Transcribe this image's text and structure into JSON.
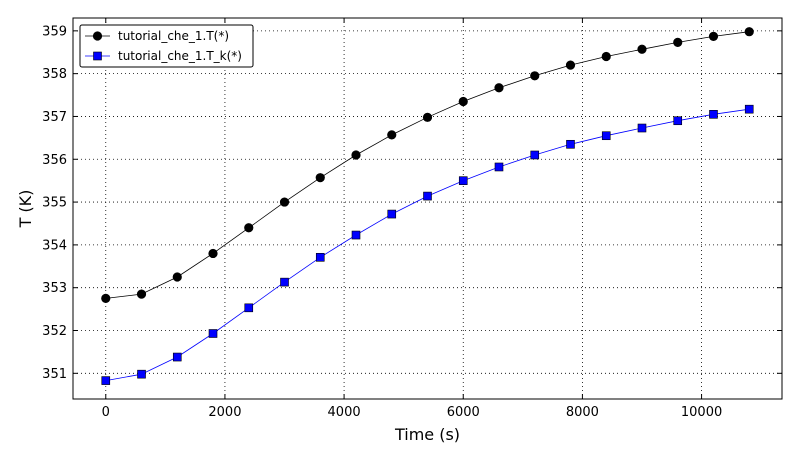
{
  "chart_data": {
    "type": "line",
    "xlabel": "Time (s)",
    "ylabel": "T (K)",
    "xlim": [
      -550,
      11350
    ],
    "ylim": [
      350.4,
      359.3
    ],
    "xticks": [
      0,
      2000,
      4000,
      6000,
      8000,
      10000
    ],
    "yticks": [
      351,
      352,
      353,
      354,
      355,
      356,
      357,
      358,
      359
    ],
    "grid": true,
    "legend_position": "top-left",
    "x": [
      0,
      600,
      1200,
      1800,
      2400,
      3000,
      3600,
      4200,
      4800,
      5400,
      6000,
      6600,
      7200,
      7800,
      8400,
      9000,
      9600,
      10200,
      10800
    ],
    "series": [
      {
        "name": "tutorial_che_1.T(*)",
        "color": "#000000",
        "marker": "circle",
        "values": [
          352.75,
          352.85,
          353.25,
          353.8,
          354.4,
          355.0,
          355.57,
          356.1,
          356.57,
          356.98,
          357.35,
          357.67,
          357.95,
          358.2,
          358.4,
          358.57,
          358.73,
          358.87,
          358.98
        ]
      },
      {
        "name": "tutorial_che_1.T_k(*)",
        "color": "#0000ff",
        "marker": "square",
        "values": [
          350.83,
          350.98,
          351.38,
          351.93,
          352.53,
          353.13,
          353.71,
          354.23,
          354.72,
          355.14,
          355.5,
          355.82,
          356.1,
          356.35,
          356.55,
          356.73,
          356.9,
          357.05,
          357.17
        ]
      }
    ]
  }
}
